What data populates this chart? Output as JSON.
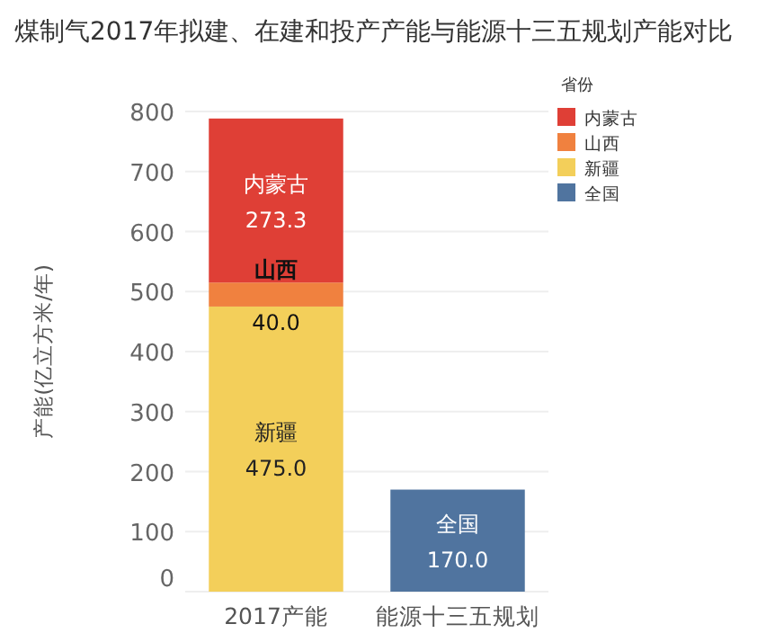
{
  "chart_data": {
    "type": "bar",
    "stacked": true,
    "title": "煤制气2017年拟建、在建和投产产能与能源十三五规划产能对比",
    "ylabel": "产能(亿立方米/年)",
    "legend_title": "省份",
    "legend": "right",
    "categories": [
      "2017产能",
      "能源十三五规划"
    ],
    "series": [
      {
        "name": "全国",
        "color": "#50749f",
        "values": [
          null,
          170.0
        ],
        "value_labels": [
          null,
          "170.0"
        ]
      },
      {
        "name": "新疆",
        "color": "#f3cf5a",
        "values": [
          475.0,
          null
        ],
        "value_labels": [
          "475.0",
          null
        ]
      },
      {
        "name": "山西",
        "color": "#f0813f",
        "values": [
          40.0,
          null
        ],
        "value_labels": [
          "40.0",
          null
        ]
      },
      {
        "name": "内蒙古",
        "color": "#df3f36",
        "values": [
          273.3,
          null
        ],
        "value_labels": [
          "273.3",
          null
        ]
      }
    ],
    "ylim": [
      0,
      800
    ],
    "yticks": [
      0,
      100,
      200,
      300,
      400,
      500,
      600,
      700,
      800
    ],
    "grid": "y"
  }
}
